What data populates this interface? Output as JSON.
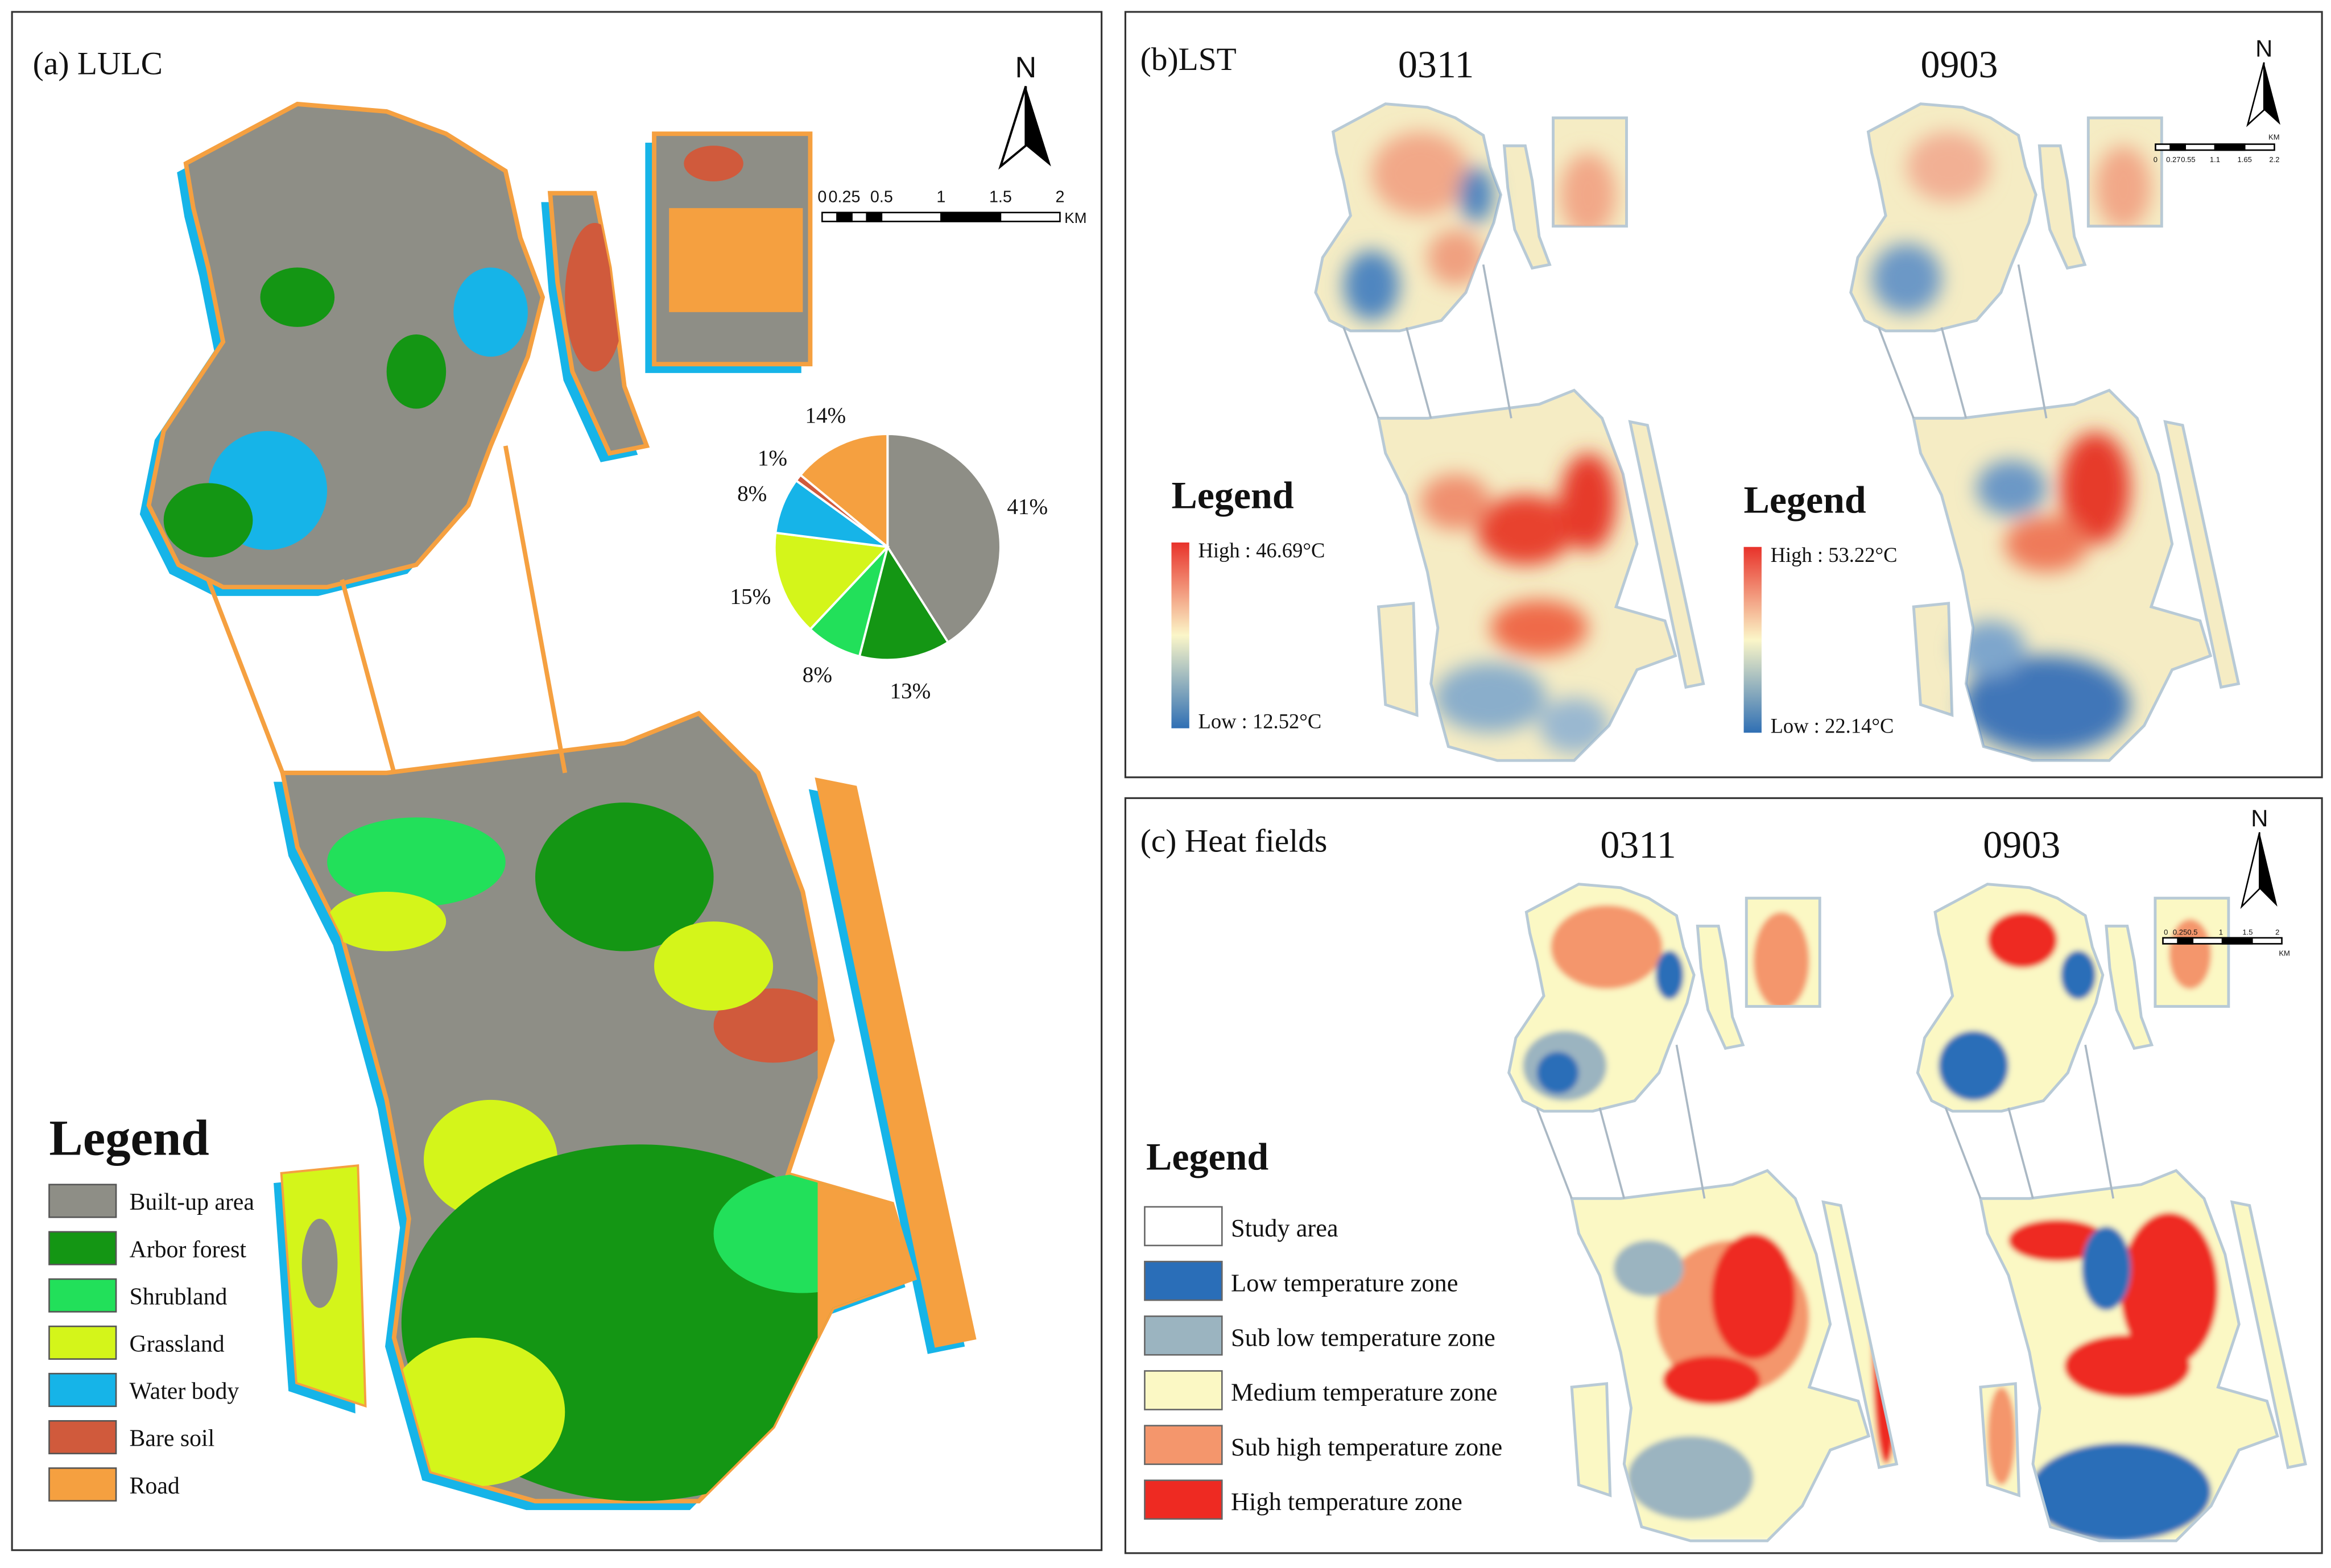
{
  "panel_a": {
    "title": "(a) LULC",
    "north": "N",
    "scale_bar": {
      "labels": [
        "0",
        "0.25",
        "0.5",
        "1",
        "1.5",
        "2"
      ],
      "unit": "KM"
    },
    "legend_title": "Legend",
    "pie": {
      "type": "pie",
      "categories": [
        "Built-up area",
        "Arbor forest",
        "Shrubland",
        "Grassland",
        "Water body",
        "Bare soil",
        "Road"
      ],
      "colors": [
        "#8e8e86",
        "#149614",
        "#22e05a",
        "#d4f51a",
        "#16b4e8",
        "#d05a3c",
        "#f5a040"
      ],
      "values": [
        41,
        13,
        8,
        15,
        8,
        1,
        14
      ],
      "value_labels": [
        "41%",
        "13%",
        "8%",
        "15%",
        "8%",
        "1%",
        "14%"
      ]
    }
  },
  "panel_b": {
    "title": "(b)LST",
    "north": "N",
    "scale_bar": {
      "labels": [
        "0",
        "0.27",
        "0.55",
        "1.1",
        "1.65",
        "2.2"
      ],
      "unit": "KM"
    },
    "maps": [
      {
        "date": "0311",
        "legend_title": "Legend",
        "high": "High : 46.69°C",
        "low": "Low : 12.52°C"
      },
      {
        "date": "0903",
        "legend_title": "Legend",
        "high": "High : 53.22°C",
        "low": "Low : 22.14°C"
      }
    ]
  },
  "panel_c": {
    "title": "(c) Heat fields",
    "north": "N",
    "scale_bar": {
      "labels": [
        "0",
        "0.250.5",
        "1",
        "1.5",
        "2"
      ],
      "unit": "KM"
    },
    "dates": [
      "0311",
      "0903"
    ],
    "legend_title": "Legend",
    "items": [
      {
        "name": "Study area",
        "color": "#ffffff"
      },
      {
        "name": "Low temperature zone",
        "color": "#2a6eb8"
      },
      {
        "name": "Sub low temperature zone",
        "color": "#9bb4c0"
      },
      {
        "name": "Medium temperature zone",
        "color": "#fbf8c4"
      },
      {
        "name": "Sub high temperature zone",
        "color": "#f4966c"
      },
      {
        "name": "High temperature zone",
        "color": "#ee2a22"
      }
    ]
  }
}
